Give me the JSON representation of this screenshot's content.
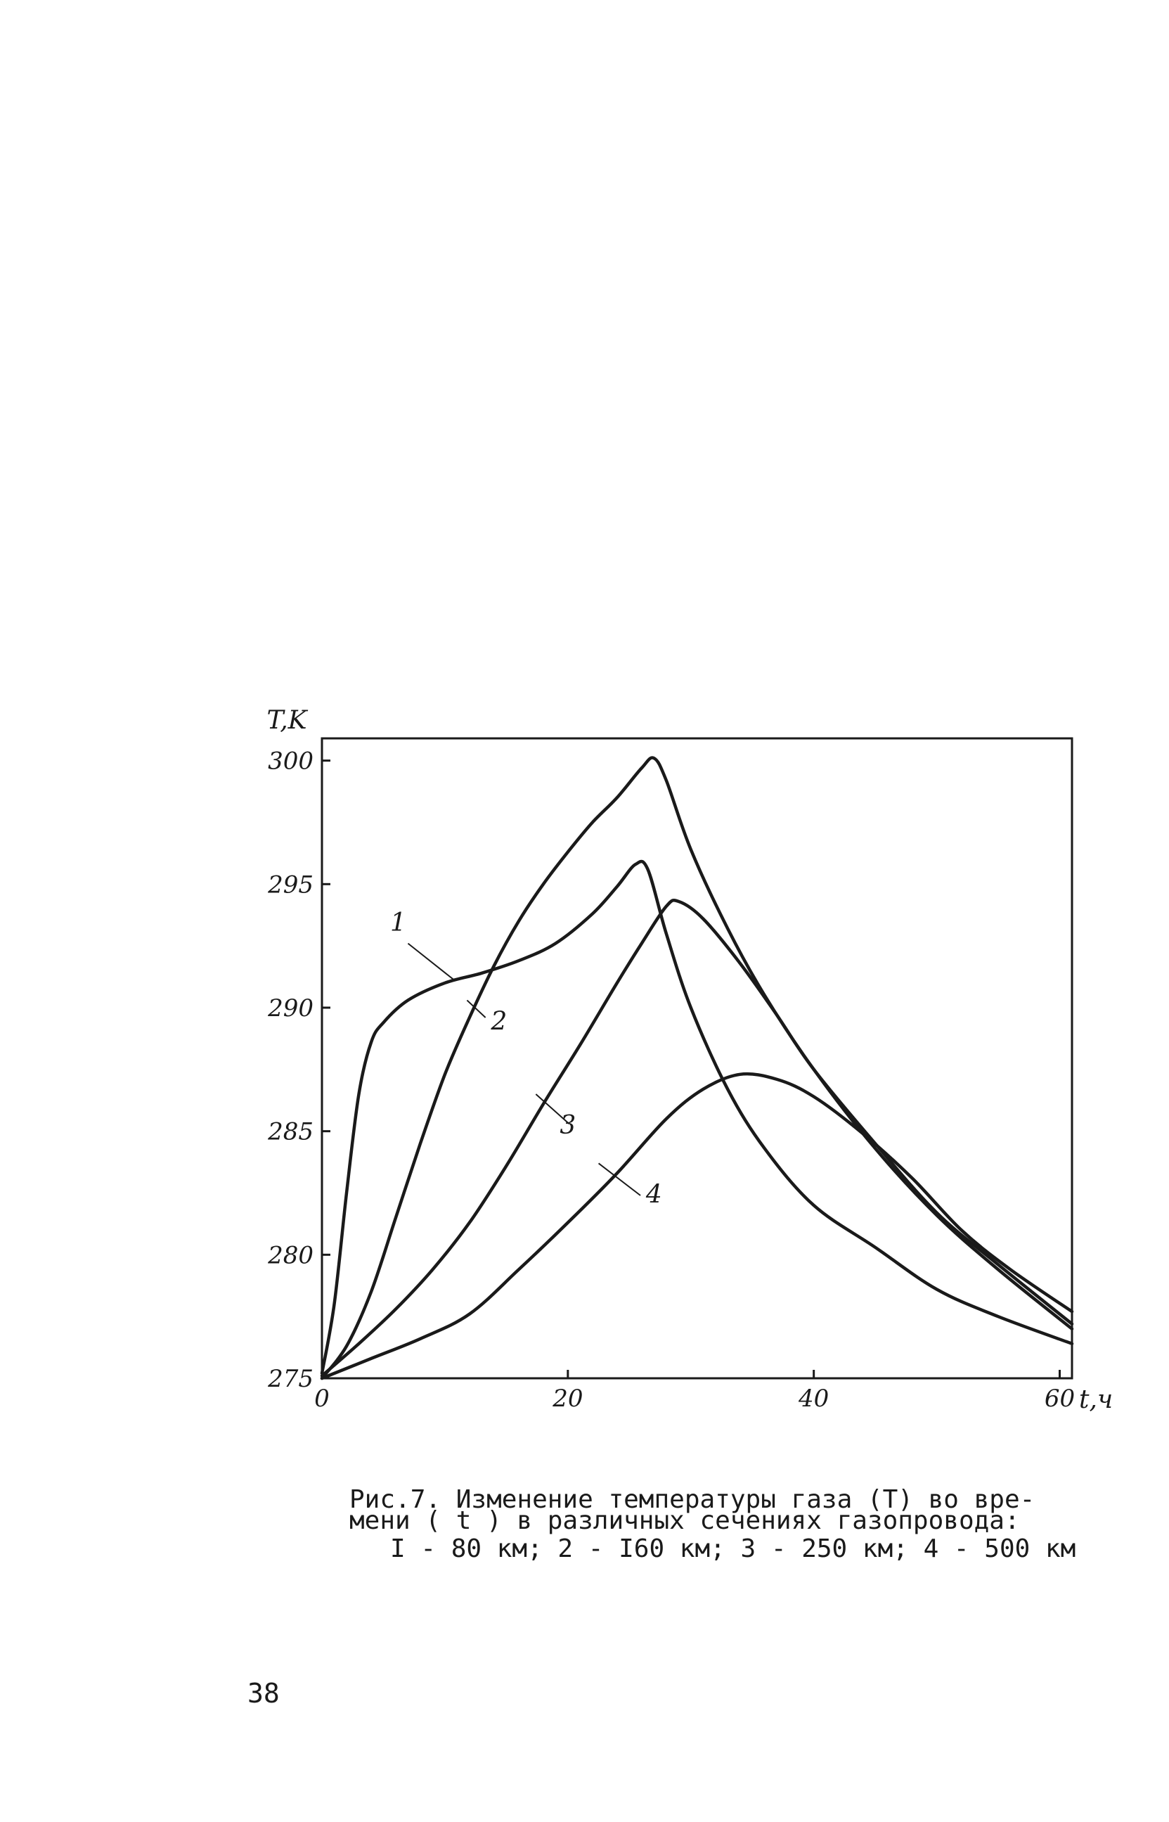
{
  "chart_data": {
    "type": "line",
    "xlabel": "t,ч",
    "ylabel": "T,K",
    "xlim": [
      0,
      61
    ],
    "ylim": [
      275,
      300.9
    ],
    "x_ticks": [
      "0",
      "20",
      "40",
      "60"
    ],
    "y_ticks": [
      "275",
      "280",
      "285",
      "290",
      "295",
      "300"
    ],
    "grid": false,
    "series": [
      {
        "name": "1",
        "x": [
          0,
          1,
          2,
          3,
          4,
          5,
          7,
          10,
          13,
          16,
          19,
          22,
          24,
          25.5,
          26.5,
          28,
          30,
          33,
          36,
          40,
          45,
          50,
          55,
          61
        ],
        "y": [
          275.2,
          278,
          282.5,
          286.5,
          288.6,
          289.4,
          290.3,
          291,
          291.4,
          291.9,
          292.6,
          293.8,
          294.9,
          295.8,
          295.6,
          293,
          290,
          286.7,
          284.3,
          282,
          280.3,
          278.6,
          277.5,
          276.4
        ]
      },
      {
        "name": "2",
        "x": [
          0,
          2,
          4,
          6,
          8,
          10,
          12,
          14,
          16,
          18,
          20,
          22,
          24,
          26,
          27,
          28,
          30,
          33,
          36,
          40,
          45,
          50,
          55,
          61
        ],
        "y": [
          275,
          276.3,
          278.5,
          281.5,
          284.5,
          287.3,
          289.6,
          291.7,
          293.5,
          295,
          296.3,
          297.5,
          298.5,
          299.7,
          300.1,
          299.2,
          296.4,
          293.2,
          290.5,
          287.5,
          284.3,
          281.6,
          279.4,
          277
        ]
      },
      {
        "name": "3",
        "x": [
          0,
          3,
          6,
          9,
          12,
          15,
          18,
          21,
          24,
          26,
          28,
          29,
          31,
          34,
          37,
          40,
          45,
          50,
          55,
          61
        ],
        "y": [
          275.1,
          276.4,
          277.8,
          279.4,
          281.3,
          283.6,
          286.1,
          288.5,
          291,
          292.6,
          294.1,
          294.3,
          293.6,
          291.8,
          289.7,
          287.5,
          284.5,
          281.7,
          279.6,
          277.2
        ]
      },
      {
        "name": "4",
        "x": [
          0,
          4,
          8,
          12,
          16,
          20,
          24,
          28,
          31,
          34,
          37,
          40,
          44,
          48,
          52,
          56,
          61
        ],
        "y": [
          275,
          275.8,
          276.6,
          277.6,
          279.4,
          281.3,
          283.3,
          285.5,
          286.7,
          287.3,
          287.1,
          286.4,
          284.9,
          283.1,
          281,
          279.4,
          277.7
        ]
      }
    ]
  },
  "caption": {
    "line1": "Рис.7. Изменение температуры газа (Т) во вре-",
    "line2": "мени ( t ) в различных сечениях газопровода:",
    "line3": "I - 80 км; 2 - I60 км; 3 - 250 км; 4 - 500 км"
  },
  "page_number": "38"
}
